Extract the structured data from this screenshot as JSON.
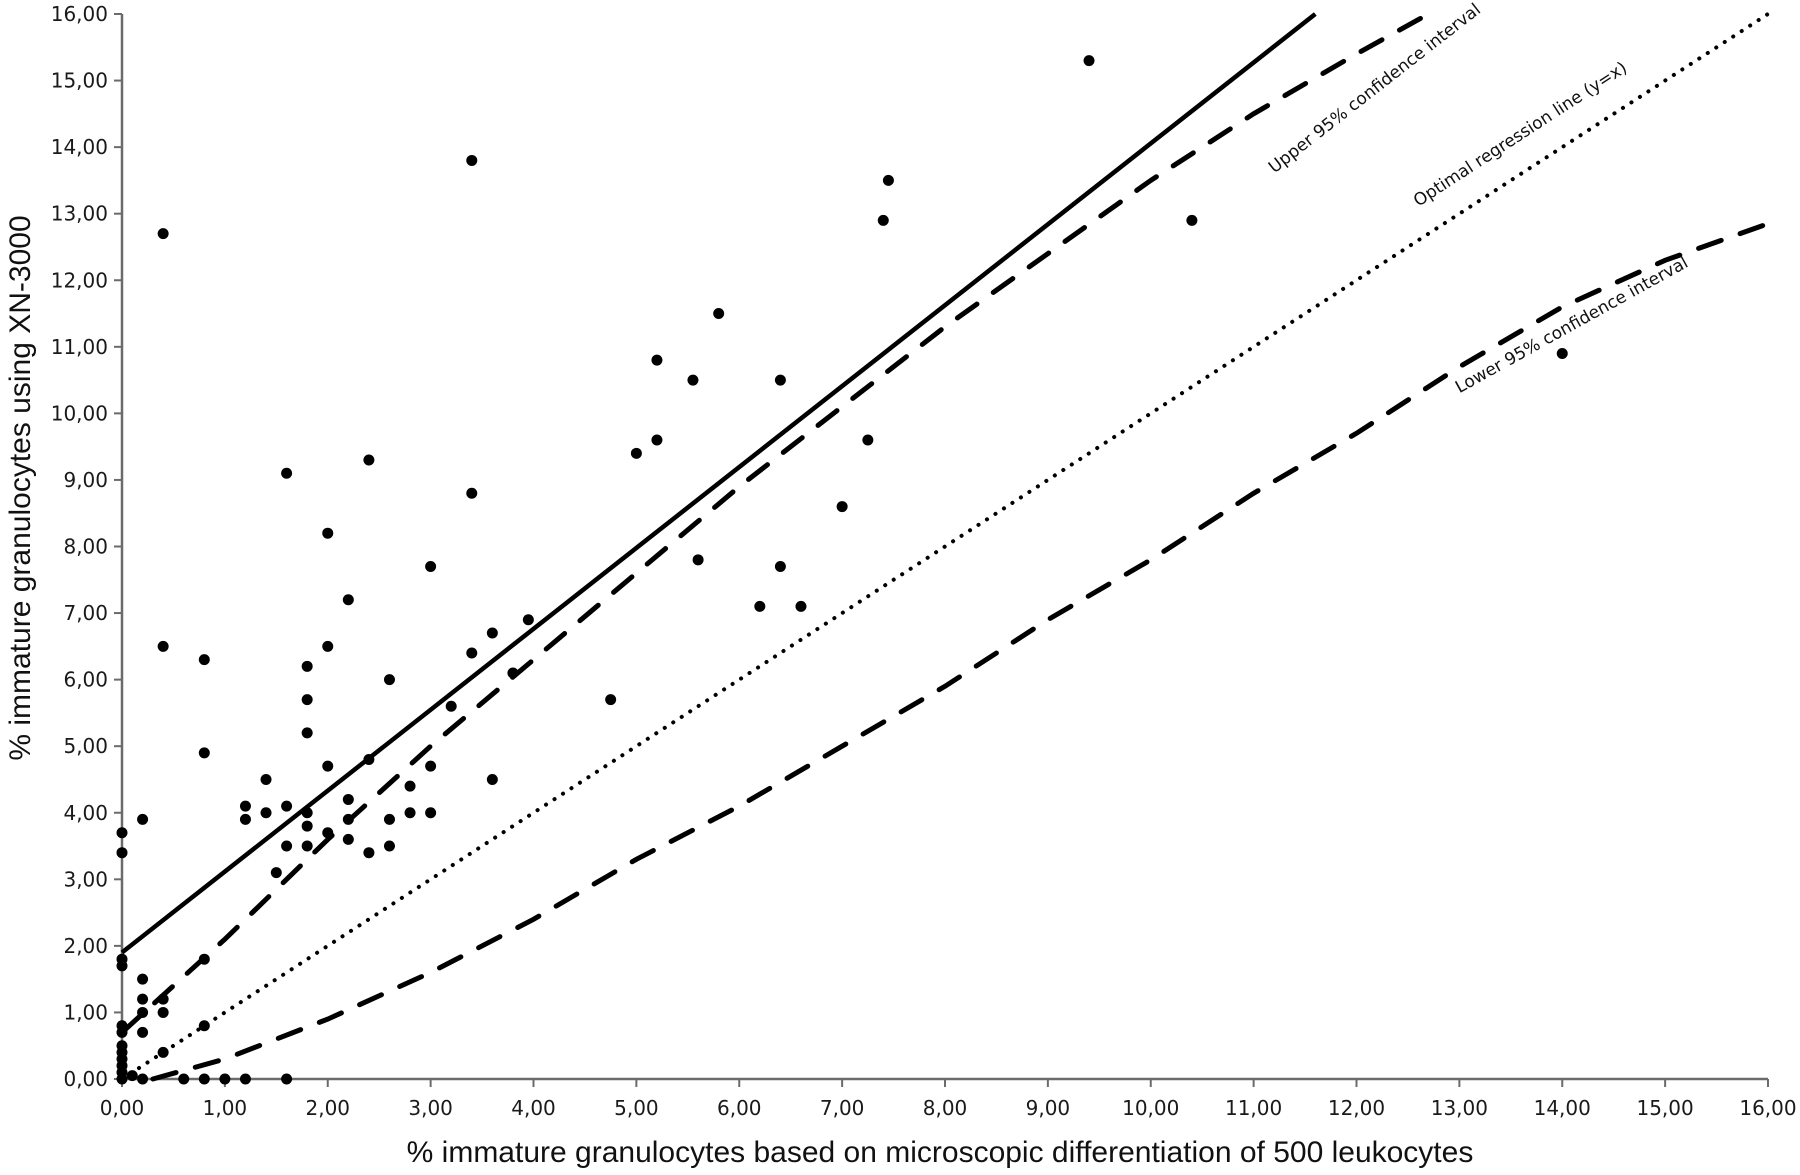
{
  "chart_data": {
    "type": "scatter",
    "title": "",
    "xlabel": "% immature granulocytes based on microscopic differentiation of 500 leukocytes",
    "ylabel": "% immature granulocytes using XN-3000",
    "xlim": [
      0,
      16
    ],
    "ylim": [
      0,
      16
    ],
    "x_ticks": [
      "0,00",
      "1,00",
      "2,00",
      "3,00",
      "4,00",
      "5,00",
      "6,00",
      "7,00",
      "8,00",
      "9,00",
      "10,00",
      "11,00",
      "12,00",
      "13,00",
      "14,00",
      "15,00",
      "16,00"
    ],
    "y_ticks": [
      "0,00",
      "1,00",
      "2,00",
      "3,00",
      "4,00",
      "5,00",
      "6,00",
      "7,00",
      "8,00",
      "9,00",
      "10,00",
      "11,00",
      "12,00",
      "13,00",
      "14,00",
      "15,00",
      "16,00"
    ],
    "grid": false,
    "legend": "none",
    "series": [
      {
        "name": "samples",
        "style": "marker",
        "points": [
          [
            0,
            3.7
          ],
          [
            0,
            3.4
          ],
          [
            0,
            1.8
          ],
          [
            0,
            1.7
          ],
          [
            0,
            0.8
          ],
          [
            0,
            0.7
          ],
          [
            0,
            0.5
          ],
          [
            0,
            0.4
          ],
          [
            0,
            0.3
          ],
          [
            0,
            0.2
          ],
          [
            0,
            0.1
          ],
          [
            0,
            0
          ],
          [
            0.1,
            0.05
          ],
          [
            0.2,
            3.9
          ],
          [
            0.2,
            1.5
          ],
          [
            0.2,
            1.2
          ],
          [
            0.2,
            1.0
          ],
          [
            0.2,
            0.7
          ],
          [
            0.2,
            0
          ],
          [
            0.4,
            12.7
          ],
          [
            0.4,
            6.5
          ],
          [
            0.4,
            1.2
          ],
          [
            0.4,
            1.0
          ],
          [
            0.4,
            0.4
          ],
          [
            0.6,
            0
          ],
          [
            0.8,
            6.3
          ],
          [
            0.8,
            4.9
          ],
          [
            0.8,
            1.8
          ],
          [
            0.8,
            0.8
          ],
          [
            0.8,
            0
          ],
          [
            1.0,
            0
          ],
          [
            1.2,
            0
          ],
          [
            1.2,
            4.1
          ],
          [
            1.2,
            3.9
          ],
          [
            1.4,
            4.5
          ],
          [
            1.4,
            4.0
          ],
          [
            1.5,
            3.1
          ],
          [
            1.6,
            9.1
          ],
          [
            1.6,
            4.1
          ],
          [
            1.6,
            3.5
          ],
          [
            1.6,
            0
          ],
          [
            1.8,
            6.2
          ],
          [
            1.8,
            5.7
          ],
          [
            1.8,
            5.2
          ],
          [
            1.8,
            4.0
          ],
          [
            1.8,
            3.8
          ],
          [
            1.8,
            3.5
          ],
          [
            2.0,
            8.2
          ],
          [
            2.0,
            6.5
          ],
          [
            2.0,
            4.7
          ],
          [
            2.0,
            3.7
          ],
          [
            2.2,
            7.2
          ],
          [
            2.2,
            4.2
          ],
          [
            2.2,
            3.9
          ],
          [
            2.2,
            3.6
          ],
          [
            2.4,
            9.3
          ],
          [
            2.4,
            4.8
          ],
          [
            2.4,
            3.4
          ],
          [
            2.6,
            6.0
          ],
          [
            2.6,
            3.9
          ],
          [
            2.6,
            3.5
          ],
          [
            2.8,
            4.4
          ],
          [
            2.8,
            4.0
          ],
          [
            3.0,
            7.7
          ],
          [
            3.0,
            4.7
          ],
          [
            3.0,
            4.0
          ],
          [
            3.2,
            5.6
          ],
          [
            3.4,
            13.8
          ],
          [
            3.4,
            8.8
          ],
          [
            3.4,
            6.4
          ],
          [
            3.6,
            6.7
          ],
          [
            3.6,
            4.5
          ],
          [
            3.8,
            6.1
          ],
          [
            3.95,
            6.9
          ],
          [
            4.75,
            5.7
          ],
          [
            5.0,
            9.4
          ],
          [
            5.2,
            10.8
          ],
          [
            5.2,
            9.6
          ],
          [
            5.55,
            10.5
          ],
          [
            5.6,
            7.8
          ],
          [
            5.8,
            11.5
          ],
          [
            6.2,
            7.1
          ],
          [
            6.4,
            10.5
          ],
          [
            6.4,
            7.7
          ],
          [
            6.6,
            7.1
          ],
          [
            7.0,
            8.6
          ],
          [
            7.25,
            9.6
          ],
          [
            7.4,
            12.9
          ],
          [
            7.45,
            13.5
          ],
          [
            9.4,
            15.3
          ],
          [
            10.4,
            12.9
          ],
          [
            14.0,
            10.9
          ]
        ]
      },
      {
        "name": "Regression line",
        "style": "solid",
        "points": [
          [
            0,
            1.9
          ],
          [
            11.6,
            16
          ]
        ]
      },
      {
        "name": "Upper 95% confidence interval",
        "style": "dashed",
        "points": [
          [
            0,
            0.7
          ],
          [
            0.5,
            1.4
          ],
          [
            1,
            2.1
          ],
          [
            2,
            3.6
          ],
          [
            3,
            5.0
          ],
          [
            4,
            6.3
          ],
          [
            5,
            7.6
          ],
          [
            6,
            8.9
          ],
          [
            7,
            10.1
          ],
          [
            8,
            11.3
          ],
          [
            9,
            12.4
          ],
          [
            10,
            13.5
          ],
          [
            11,
            14.5
          ],
          [
            12,
            15.4
          ],
          [
            12.7,
            16
          ]
        ]
      },
      {
        "name": "Optimal regression line (y=x)",
        "style": "dotted",
        "points": [
          [
            0,
            0
          ],
          [
            16,
            16
          ]
        ]
      },
      {
        "name": "Lower 95% confidence interval",
        "style": "dashed",
        "points": [
          [
            0.3,
            0
          ],
          [
            1,
            0.3
          ],
          [
            2,
            0.9
          ],
          [
            3,
            1.6
          ],
          [
            4,
            2.4
          ],
          [
            5,
            3.3
          ],
          [
            6,
            4.1
          ],
          [
            7,
            5.0
          ],
          [
            8,
            5.9
          ],
          [
            9,
            6.9
          ],
          [
            10,
            7.8
          ],
          [
            11,
            8.8
          ],
          [
            12,
            9.7
          ],
          [
            13,
            10.7
          ],
          [
            14,
            11.6
          ],
          [
            15,
            12.3
          ],
          [
            16,
            12.85
          ]
        ]
      }
    ],
    "annotations": [
      {
        "text": "Upper 95% confidence interval",
        "x": 11.2,
        "y": 13.6,
        "angle": -38
      },
      {
        "text": "Optimal regression line (y=x)",
        "x": 12.6,
        "y": 13.1,
        "angle": -33
      },
      {
        "text": "Lower 95% confidence interval",
        "x": 13.0,
        "y": 10.3,
        "angle": -29
      }
    ]
  }
}
